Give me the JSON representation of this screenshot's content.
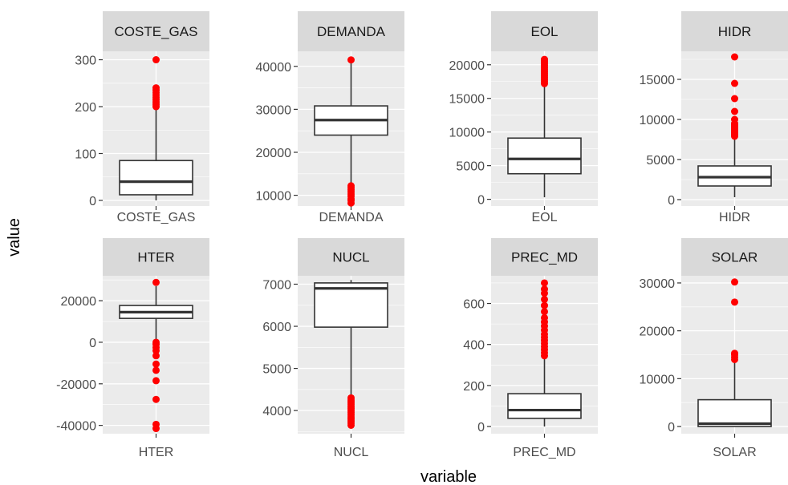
{
  "chart_data": {
    "type": "boxplot",
    "facet": "facet_wrap(~variable, scales = 'free', nrow = 2)",
    "xlabel": "variable",
    "ylabel": "value",
    "outlier_color": "#ff0000",
    "panel_background": "#ebebeb",
    "strip_background": "#d9d9d9",
    "grid": true,
    "panels": [
      {
        "name": "COSTE_GAS",
        "ylim": [
          -12,
          318
        ],
        "yticks": [
          0,
          100,
          200,
          300
        ],
        "box": {
          "q1": 12,
          "median": 40,
          "q3": 85,
          "whisker_low": 0,
          "whisker_high": 195
        },
        "outliers": [
          200,
          205,
          210,
          215,
          220,
          225,
          230,
          235,
          240,
          300
        ]
      },
      {
        "name": "DEMANDA",
        "ylim": [
          7500,
          43500
        ],
        "yticks": [
          10000,
          20000,
          30000,
          40000
        ],
        "box": {
          "q1": 24000,
          "median": 27500,
          "q3": 30800,
          "whisker_low": 13000,
          "whisker_high": 41500
        },
        "outliers": [
          8200,
          8800,
          9200,
          9800,
          10300,
          10800,
          11300,
          11800,
          12200,
          41500
        ]
      },
      {
        "name": "EOL",
        "ylim": [
          -1000,
          22000
        ],
        "yticks": [
          0,
          5000,
          10000,
          15000,
          20000
        ],
        "box": {
          "q1": 3800,
          "median": 6000,
          "q3": 9100,
          "whisker_low": 300,
          "whisker_high": 17000
        },
        "outliers": [
          17200,
          17500,
          17800,
          18100,
          18400,
          18700,
          19000,
          19300,
          19600,
          19900,
          20200,
          20500,
          20800
        ]
      },
      {
        "name": "HIDR",
        "ylim": [
          -800,
          18500
        ],
        "yticks": [
          0,
          5000,
          10000,
          15000
        ],
        "box": {
          "q1": 1700,
          "median": 2800,
          "q3": 4200,
          "whisker_low": 300,
          "whisker_high": 7700
        },
        "outliers": [
          7900,
          8100,
          8300,
          8500,
          8700,
          8900,
          9100,
          9300,
          9500,
          10000,
          11000,
          12600,
          14500,
          17800
        ]
      },
      {
        "name": "HTER",
        "ylim": [
          -44000,
          32000
        ],
        "yticks": [
          -40000,
          -20000,
          0,
          20000
        ],
        "box": {
          "q1": 11500,
          "median": 14500,
          "q3": 17700,
          "whisker_low": 1500,
          "whisker_high": 27000
        },
        "outliers": [
          -41500,
          -39500,
          -27500,
          -18500,
          -13500,
          -10500,
          -6500,
          -4000,
          -2500,
          -1000,
          0,
          28800
        ]
      },
      {
        "name": "NUCL",
        "ylim": [
          3450,
          7200
        ],
        "yticks": [
          4000,
          5000,
          6000,
          7000
        ],
        "box": {
          "q1": 5980,
          "median": 6900,
          "q3": 7030,
          "whisker_low": 4380,
          "whisker_high": 7100
        },
        "outliers": [
          3650,
          3700,
          3750,
          3800,
          3850,
          3900,
          3950,
          4000,
          4050,
          4100,
          4150,
          4200,
          4250,
          4300
        ]
      },
      {
        "name": "PREC_MD",
        "ylim": [
          -35,
          735
        ],
        "yticks": [
          0,
          200,
          400,
          600
        ],
        "box": {
          "q1": 40,
          "median": 80,
          "q3": 160,
          "whisker_low": 0,
          "whisker_high": 335
        },
        "outliers": [
          345,
          360,
          375,
          390,
          405,
          420,
          435,
          450,
          470,
          490,
          510,
          530,
          560,
          590,
          620,
          650,
          670,
          700
        ]
      },
      {
        "name": "SOLAR",
        "ylim": [
          -1500,
          31500
        ],
        "yticks": [
          0,
          10000,
          20000,
          30000
        ],
        "box": {
          "q1": 0,
          "median": 600,
          "q3": 5600,
          "whisker_low": 0,
          "whisker_high": 13500
        },
        "outliers": [
          14000,
          14500,
          15000,
          15300,
          26000,
          30200
        ]
      }
    ]
  }
}
